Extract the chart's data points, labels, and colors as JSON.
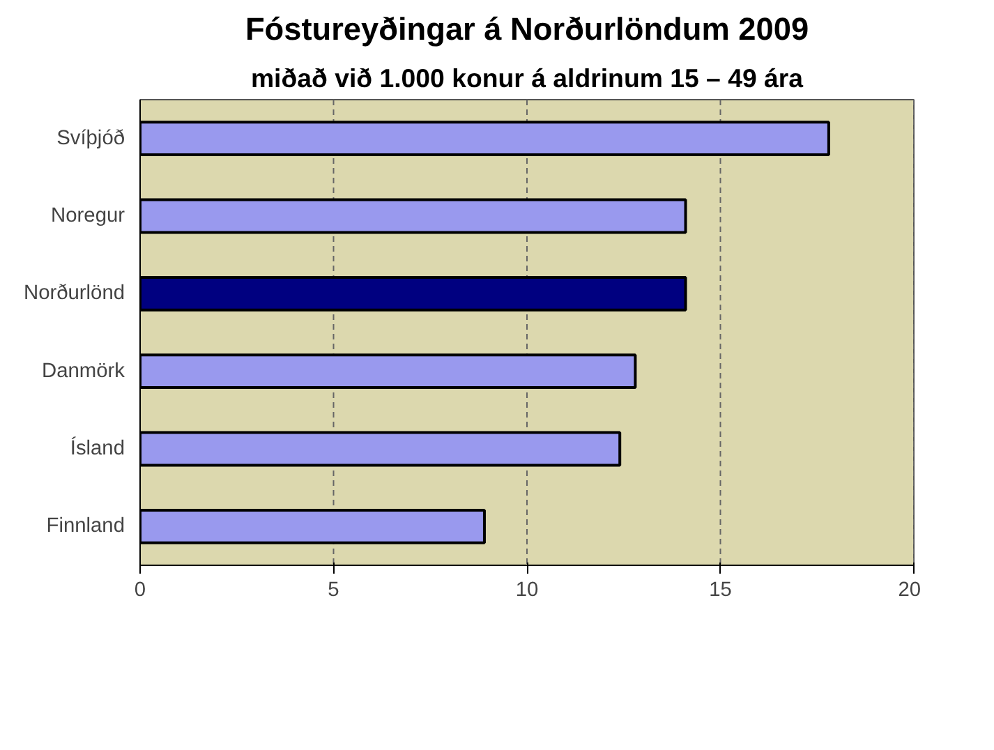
{
  "chart_data": {
    "type": "bar",
    "orientation": "horizontal",
    "title": "Fóstureyðingar á Norðurlöndum 2009",
    "subtitle": "miðað við 1.000 konur á aldrinum 15 – 49 ára",
    "categories": [
      "Svíþjóð",
      "Noregur",
      "Norðurlönd",
      "Danmörk",
      "Ísland",
      "Finnland"
    ],
    "values": [
      17.8,
      14.1,
      14.1,
      12.8,
      12.4,
      8.9
    ],
    "colors": [
      "#9999ee",
      "#9999ee",
      "#000080",
      "#9999ee",
      "#9999ee",
      "#9999ee"
    ],
    "xlim": [
      0,
      20
    ],
    "xticks": [
      0,
      5,
      10,
      15,
      20
    ],
    "grid": "x"
  }
}
